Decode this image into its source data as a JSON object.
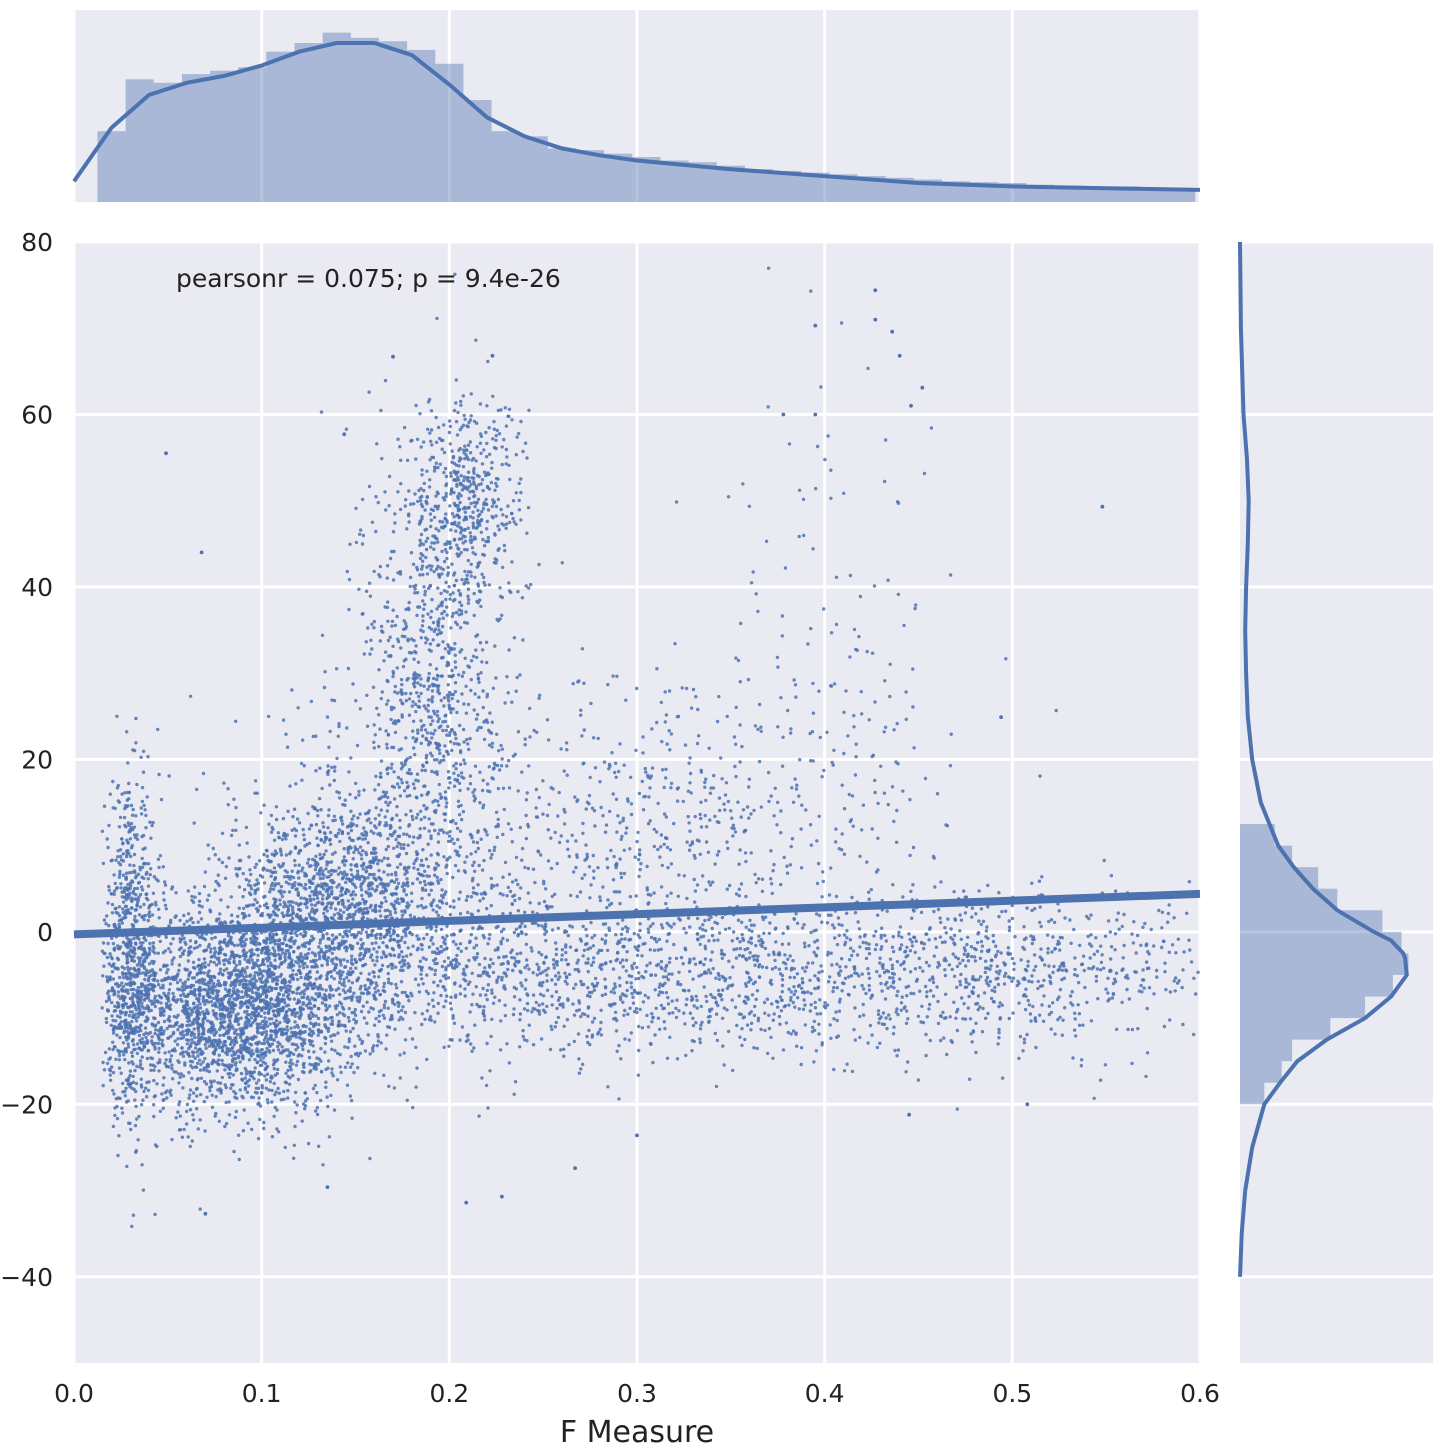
{
  "chart_data": [
    {
      "type": "scatter",
      "panel": "joint",
      "xlabel": "F Measure",
      "ylabel": "",
      "xlim": [
        0.0,
        0.6
      ],
      "ylim": [
        -50,
        80
      ],
      "xticks": [
        "0.0",
        "0.1",
        "0.2",
        "0.3",
        "0.4",
        "0.5",
        "0.6"
      ],
      "yticks": [
        "80",
        "60",
        "40",
        "20",
        "0",
        "−20",
        "−40"
      ],
      "grid": true,
      "annotation": "pearsonr = 0.075; p = 9.4e-26",
      "regression_line": {
        "x": [
          0.0,
          0.6
        ],
        "y": [
          -0.3,
          4.4
        ]
      },
      "clusters": [
        {
          "x_mean": 0.085,
          "x_sd": 0.035,
          "y_mean": -9,
          "y_sd": 6,
          "weight": 30
        },
        {
          "x_mean": 0.03,
          "x_sd": 0.008,
          "y_mean": -2,
          "y_sd": 9,
          "weight": 8
        },
        {
          "x_mean": 0.14,
          "x_sd": 0.03,
          "y_mean": 3,
          "y_sd": 6,
          "weight": 15
        },
        {
          "x_mean": 0.19,
          "x_sd": 0.018,
          "y_mean": 30,
          "y_sd": 14,
          "weight": 10
        },
        {
          "x_mean": 0.21,
          "x_sd": 0.015,
          "y_mean": 50,
          "y_sd": 6,
          "weight": 5
        },
        {
          "x_mean": 0.3,
          "x_sd": 0.09,
          "y_mean": -5,
          "y_sd": 5,
          "weight": 16
        },
        {
          "x_mean": 0.5,
          "x_sd": 0.06,
          "y_mean": -4,
          "y_sd": 4.5,
          "weight": 8
        },
        {
          "x_mean": 0.33,
          "x_sd": 0.06,
          "y_mean": 12,
          "y_sd": 8,
          "weight": 5
        },
        {
          "x_mean": 0.41,
          "x_sd": 0.04,
          "y_mean": 30,
          "y_sd": 16,
          "weight": 1.5
        },
        {
          "x_mean": 0.2,
          "x_sd": 0.06,
          "y_mean": 10,
          "y_sd": 10,
          "weight": 6
        }
      ],
      "outliers": [
        {
          "x": 0.427,
          "y": 74.4
        },
        {
          "x": 0.395,
          "y": 70.3
        },
        {
          "x": 0.427,
          "y": 71.0
        },
        {
          "x": 0.436,
          "y": 69.6
        },
        {
          "x": 0.44,
          "y": 66.8
        },
        {
          "x": 0.17,
          "y": 66.7
        },
        {
          "x": 0.223,
          "y": 66.8
        },
        {
          "x": 0.452,
          "y": 63.1
        },
        {
          "x": 0.548,
          "y": 49.3
        },
        {
          "x": 0.049,
          "y": 55.5
        },
        {
          "x": 0.068,
          "y": 44.0
        },
        {
          "x": 0.144,
          "y": 57.7
        },
        {
          "x": 0.135,
          "y": -29.6
        },
        {
          "x": 0.07,
          "y": -32.7
        },
        {
          "x": 0.209,
          "y": -31.4
        },
        {
          "x": 0.228,
          "y": -30.7
        },
        {
          "x": 0.3,
          "y": -23.6
        },
        {
          "x": 0.267,
          "y": -27.4
        },
        {
          "x": 0.445,
          "y": -21.2
        },
        {
          "x": 0.508,
          "y": -20.0
        },
        {
          "x": 0.494,
          "y": 24.9
        },
        {
          "x": 0.378,
          "y": 60.0
        },
        {
          "x": 0.395,
          "y": 60.0
        },
        {
          "x": 0.446,
          "y": 61.0
        }
      ]
    },
    {
      "type": "bar",
      "panel": "marginal-x-histogram-with-kde",
      "bin_edges": [
        0.0125,
        0.0275,
        0.0425,
        0.0575,
        0.0725,
        0.0875,
        0.1025,
        0.1175,
        0.1325,
        0.1475,
        0.1625,
        0.1775,
        0.1925,
        0.2075,
        0.2225,
        0.2375,
        0.2525,
        0.2675,
        0.2825,
        0.2975,
        0.3125,
        0.3275,
        0.3425,
        0.3575,
        0.3725,
        0.3875,
        0.4025,
        0.4175,
        0.4325,
        0.4475,
        0.4625,
        0.4775,
        0.4925,
        0.5075,
        0.5225,
        0.5375,
        0.5525,
        0.5675,
        0.5825,
        0.5975
      ],
      "values": [
        0.41,
        0.71,
        0.69,
        0.74,
        0.76,
        0.78,
        0.87,
        0.92,
        0.98,
        0.95,
        0.93,
        0.88,
        0.8,
        0.59,
        0.41,
        0.38,
        0.31,
        0.3,
        0.28,
        0.26,
        0.24,
        0.23,
        0.21,
        0.19,
        0.18,
        0.17,
        0.16,
        0.15,
        0.14,
        0.13,
        0.12,
        0.115,
        0.11,
        0.1,
        0.095,
        0.09,
        0.09,
        0.085,
        0.08
      ],
      "kde": {
        "x": [
          0.0,
          0.02,
          0.04,
          0.06,
          0.08,
          0.1,
          0.12,
          0.14,
          0.16,
          0.18,
          0.2,
          0.22,
          0.24,
          0.26,
          0.28,
          0.3,
          0.35,
          0.4,
          0.45,
          0.5,
          0.55,
          0.6
        ],
        "y": [
          0.12,
          0.43,
          0.62,
          0.69,
          0.73,
          0.79,
          0.87,
          0.92,
          0.92,
          0.85,
          0.68,
          0.49,
          0.38,
          0.31,
          0.27,
          0.24,
          0.19,
          0.15,
          0.11,
          0.09,
          0.08,
          0.07
        ]
      }
    },
    {
      "type": "bar",
      "panel": "marginal-y-histogram-with-kde",
      "orientation": "horizontal",
      "bin_edges": [
        -20.0,
        -17.5,
        -15.0,
        -12.5,
        -10.0,
        -7.5,
        -5.0,
        -2.5,
        0.0,
        2.5,
        5.0,
        7.5,
        10.0,
        12.5
      ],
      "values": [
        0.14,
        0.24,
        0.3,
        0.52,
        0.72,
        0.88,
        0.97,
        0.93,
        0.82,
        0.56,
        0.45,
        0.3,
        0.2
      ],
      "kde": {
        "y": [
          -40,
          -35,
          -30,
          -25,
          -20,
          -17.5,
          -15,
          -12.5,
          -10,
          -7.5,
          -5,
          -3,
          -2.5,
          -1,
          0,
          2.5,
          5,
          7.5,
          10,
          12.5,
          15,
          20,
          25,
          30,
          35,
          40,
          45,
          50,
          55,
          60,
          70,
          80
        ],
        "x": [
          0.0,
          0.01,
          0.03,
          0.07,
          0.14,
          0.23,
          0.33,
          0.5,
          0.72,
          0.87,
          0.96,
          0.95,
          0.94,
          0.87,
          0.77,
          0.56,
          0.42,
          0.31,
          0.22,
          0.17,
          0.12,
          0.07,
          0.045,
          0.035,
          0.03,
          0.035,
          0.045,
          0.05,
          0.04,
          0.02,
          0.005,
          0.0
        ]
      }
    }
  ],
  "colors": {
    "panel_bg": "#eaeaf2",
    "grid": "#ffffff",
    "series": "#4c72b0",
    "hist_fill": "#4c72b0"
  }
}
